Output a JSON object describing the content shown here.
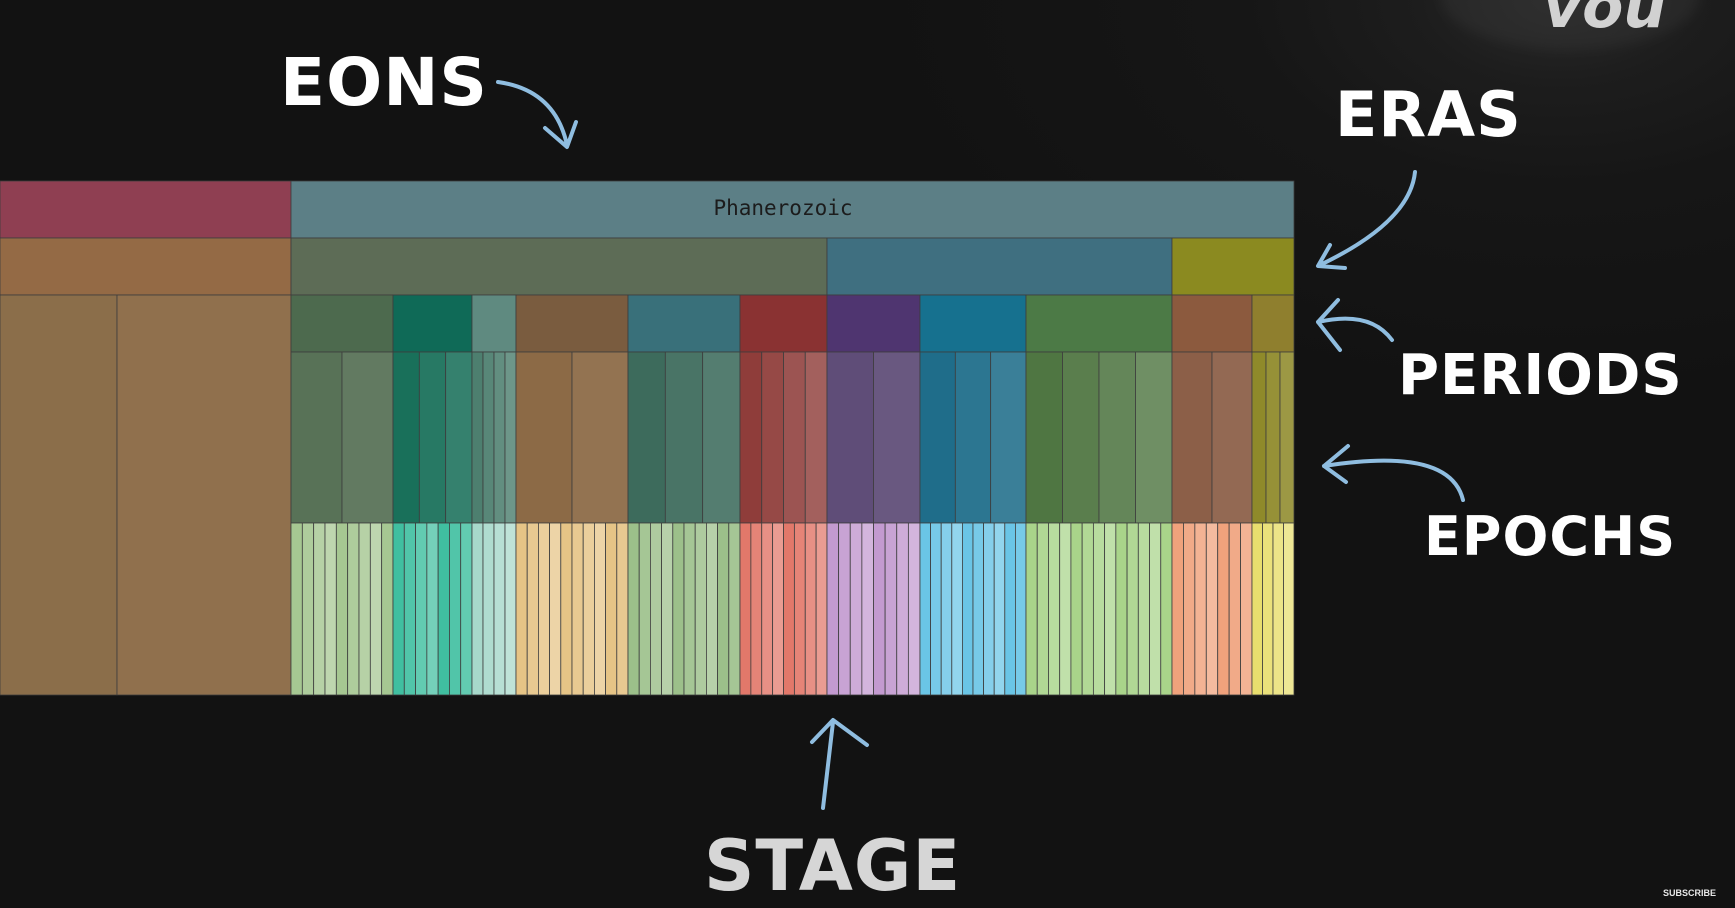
{
  "labels": {
    "eons": "EONS",
    "eras": "ERAS",
    "periods": "PERIODS",
    "epochs": "EPOCHS",
    "stage": "STAGE"
  },
  "eon_name": "Phanerozoic",
  "subscribe": "SUBSCRIBE",
  "corner_text": "vou",
  "colors": {
    "arrow": "#8fbde0",
    "background": "#151515",
    "label": "#ffffff"
  }
}
